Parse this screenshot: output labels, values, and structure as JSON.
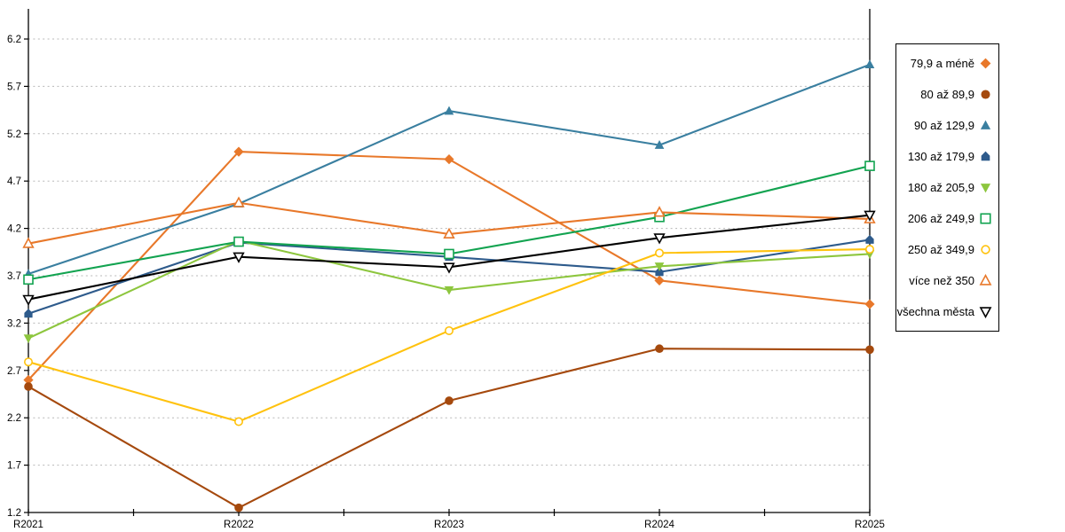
{
  "chart_data": {
    "type": "line",
    "title": "",
    "xlabel": "",
    "ylabel": "",
    "x_labels": [
      "R2021",
      "R2022",
      "R2023",
      "R2024",
      "R2025"
    ],
    "y_ticks": [
      1.2,
      1.7,
      2.2,
      2.7,
      3.2,
      3.7,
      4.2,
      4.7,
      5.2,
      5.7,
      6.2
    ],
    "ylim": [
      1.2,
      6.52
    ],
    "grid": "horizontal-dotted",
    "legend_position": "right",
    "gridline_color": "#b8b8b8",
    "axis_color": "#000000",
    "series": [
      {
        "name": "79,9 a méně",
        "color": "#e8782a",
        "marker": "diamond",
        "fill": "solid",
        "values": [
          2.6,
          5.01,
          4.93,
          3.65,
          3.4
        ]
      },
      {
        "name": "80 až 89,9",
        "color": "#a5490d",
        "marker": "circle",
        "fill": "solid",
        "values": [
          2.53,
          1.25,
          2.38,
          2.93,
          2.92
        ]
      },
      {
        "name": "90 až 129,9",
        "color": "#3a7fa0",
        "marker": "triangle-up",
        "fill": "solid",
        "values": [
          3.72,
          4.46,
          5.44,
          5.08,
          5.93
        ]
      },
      {
        "name": "130 až 179,9",
        "color": "#2e5b8c",
        "marker": "pentagon",
        "fill": "solid",
        "values": [
          3.3,
          4.05,
          3.9,
          3.74,
          4.08
        ]
      },
      {
        "name": "180 až 205,9",
        "color": "#8dc63e",
        "marker": "triangle-down",
        "fill": "solid",
        "values": [
          3.04,
          4.07,
          3.55,
          3.8,
          3.93
        ]
      },
      {
        "name": "206 až 249,9",
        "color": "#12a350",
        "marker": "square",
        "fill": "hollow",
        "values": [
          3.66,
          4.06,
          3.93,
          4.32,
          4.86
        ]
      },
      {
        "name": "250 až 349,9",
        "color": "#ffc20e",
        "marker": "circle",
        "fill": "hollow",
        "values": [
          2.79,
          2.16,
          3.12,
          3.94,
          3.98
        ]
      },
      {
        "name": "více než 350",
        "color": "#e8782a",
        "marker": "triangle-up",
        "fill": "hollow",
        "values": [
          4.04,
          4.47,
          4.14,
          4.37,
          4.3
        ]
      },
      {
        "name": "všechna města",
        "color": "#000000",
        "marker": "triangle-down",
        "fill": "hollow",
        "values": [
          3.45,
          3.9,
          3.79,
          4.1,
          4.34
        ]
      }
    ]
  }
}
